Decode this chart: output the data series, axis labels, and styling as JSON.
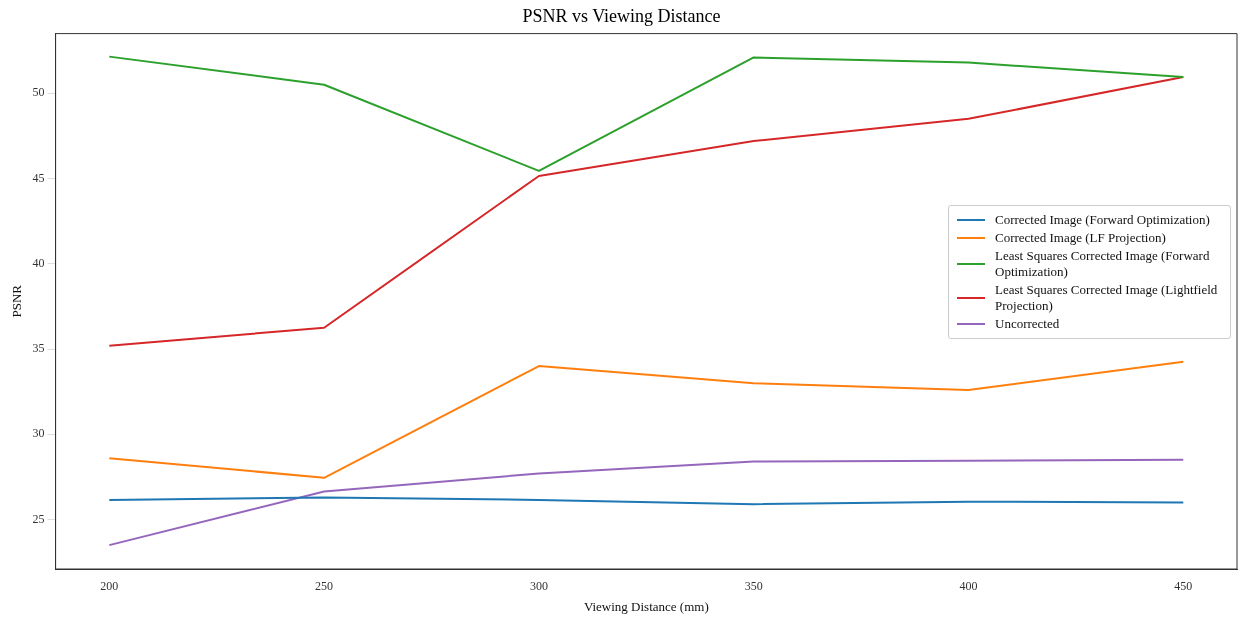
{
  "chart_data": {
    "type": "line",
    "title": "PSNR vs Viewing Distance",
    "xlabel": "Viewing Distance (mm)",
    "ylabel": "PSNR",
    "x": [
      200,
      250,
      300,
      350,
      400,
      450
    ],
    "xlim": [
      187.5,
      462.5
    ],
    "xticks": [
      200,
      250,
      300,
      350,
      400,
      450
    ],
    "ylim": [
      22.1,
      53.5
    ],
    "yticks": [
      25,
      30,
      35,
      40,
      45,
      50
    ],
    "grid": false,
    "legend": "right",
    "marker": "none",
    "line_style": "solid",
    "series": [
      {
        "name": "Corrected Image (Forward Optimization)",
        "color": "#1f77b4",
        "values": [
          26.15,
          26.3,
          26.15,
          25.9,
          26.05,
          26.0
        ]
      },
      {
        "name": "Corrected Image (LF Projection)",
        "color": "#ff7f0e",
        "values": [
          28.6,
          27.45,
          34.0,
          33.0,
          32.6,
          34.25
        ]
      },
      {
        "name": "Least Squares Corrected Image (Forward Optimization)",
        "color": "#2ca02c",
        "values": [
          52.15,
          50.5,
          45.45,
          52.1,
          51.8,
          50.95
        ]
      },
      {
        "name": "Least Squares Corrected Image (Lightfield Projection)",
        "color": "#d62728",
        "values": [
          35.2,
          36.25,
          45.15,
          47.2,
          48.5,
          50.95
        ]
      },
      {
        "name": "Uncorrected",
        "color": "#9467bd",
        "values": [
          23.5,
          26.65,
          27.7,
          28.4,
          28.45,
          28.5
        ]
      }
    ]
  }
}
